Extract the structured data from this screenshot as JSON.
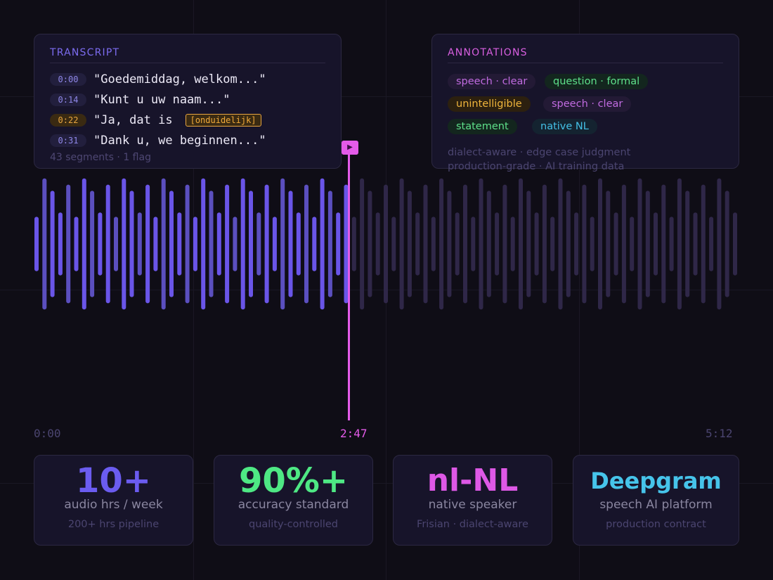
{
  "transcript": {
    "title": "TRANSCRIPT",
    "rows": [
      {
        "time": "0:00",
        "text": "\"Goedemiddag, welkom...\""
      },
      {
        "time": "0:14",
        "text": "\"Kunt u uw naam...\""
      },
      {
        "time": "0:22",
        "text": "\"Ja, dat is",
        "flag": "[onduidelijk]"
      },
      {
        "time": "0:31",
        "text": "\"Dank u, we beginnen...\""
      }
    ],
    "footer": "43 segments · 1 flag"
  },
  "annotations": {
    "title": "ANNOTATIONS",
    "chips": [
      {
        "label": "speech · clear",
        "color": "purple"
      },
      {
        "label": "question · formal",
        "color": "green"
      },
      {
        "label": "unintelligible",
        "color": "amber"
      },
      {
        "label": "speech · clear",
        "color": "purple"
      },
      {
        "label": "statement",
        "color": "green"
      },
      {
        "label": "native NL",
        "color": "cyan"
      }
    ],
    "note_line_1": "dialect-aware · edge case judgment",
    "note_line_2": "production-grade · AI training data"
  },
  "playback": {
    "start": "0:00",
    "current": "2:47",
    "end": "5:12",
    "progress": 0.535,
    "play_icon": "play-icon"
  },
  "stats": [
    {
      "value": "10+",
      "label": "audio hrs / week",
      "sub": "200+ hrs pipeline",
      "color": "#6b5cf0"
    },
    {
      "value": "90%+",
      "label": "accuracy standard",
      "sub": "quality-controlled",
      "color": "#4ee884"
    },
    {
      "value": "nl-NL",
      "label": "native speaker",
      "sub": "Frisian · dialect-aware",
      "color": "#de58e6"
    },
    {
      "value": "Deepgram",
      "label": "speech AI platform",
      "sub": "production contract",
      "color": "#46c4ea"
    }
  ],
  "colors": {
    "played": "#6a55e8",
    "played_alt": "#5b4fbf",
    "unplayed": "#2f2748",
    "accent": "#e45be9"
  }
}
